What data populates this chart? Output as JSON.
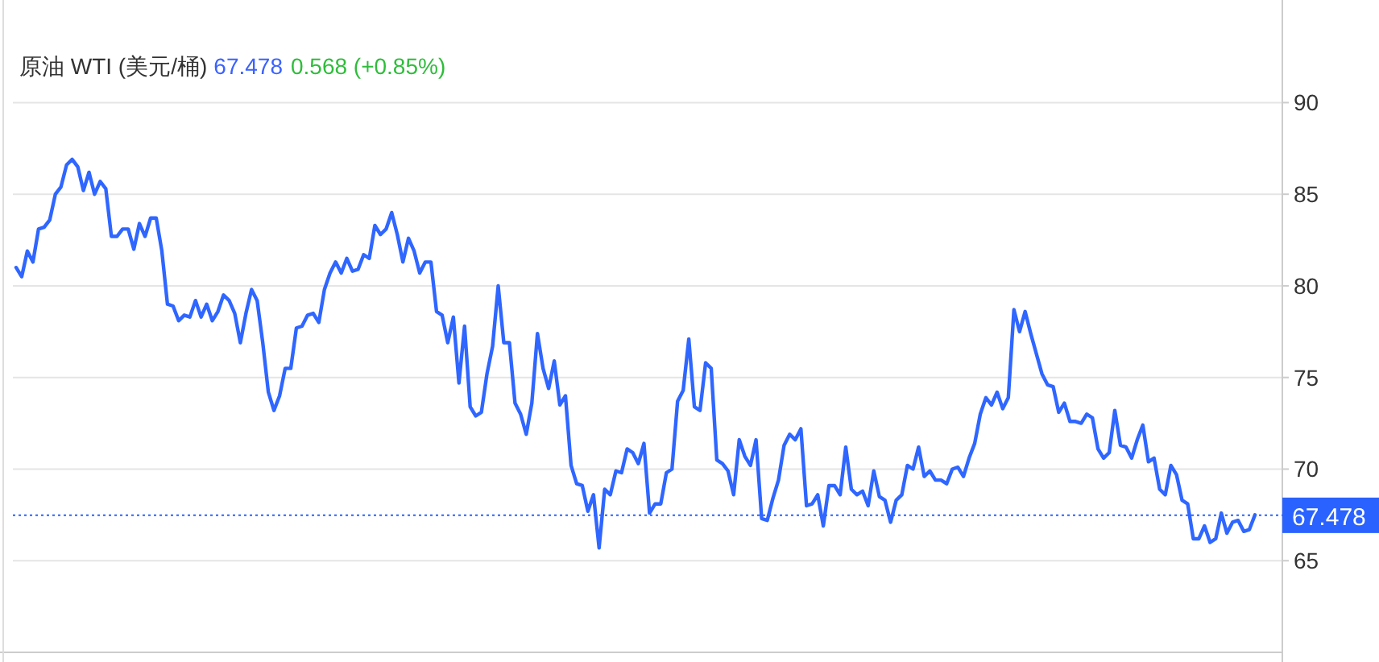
{
  "chart_data": {
    "type": "line",
    "title": "原油 WTI (美元/桶)",
    "annotations": [
      "67.478",
      "0.568 (+0.85%)"
    ],
    "categories": [
      null,
      null,
      null,
      null,
      null,
      null,
      null,
      null,
      null,
      null,
      null,
      null,
      null,
      null,
      null,
      null,
      null,
      null,
      null,
      null,
      null,
      null,
      null,
      null,
      null,
      null,
      null,
      null,
      null,
      null,
      null,
      null,
      null,
      null,
      null,
      null,
      null,
      null,
      null,
      null,
      null,
      null,
      null,
      null,
      null,
      null,
      null,
      null,
      null,
      null,
      null,
      null,
      null,
      null,
      null,
      null,
      null,
      null,
      null,
      null,
      null,
      null,
      null,
      null,
      null,
      null,
      null,
      null,
      null,
      null,
      null,
      null,
      null,
      null,
      null,
      null,
      null,
      null,
      null,
      null,
      null,
      null,
      null,
      null,
      null,
      null,
      null,
      null,
      null,
      null,
      null,
      null,
      null,
      null,
      null,
      null,
      null,
      null,
      null,
      null,
      null,
      null,
      null,
      null,
      null,
      null,
      null,
      null,
      null,
      null,
      null,
      null,
      null,
      null,
      null,
      null,
      null,
      null,
      null,
      null,
      null,
      null,
      null,
      null,
      null,
      null,
      null,
      null,
      null,
      null,
      null,
      null,
      null,
      null,
      null,
      null,
      null,
      null,
      null,
      null,
      null,
      null,
      null,
      null,
      null,
      null,
      null,
      null,
      null,
      null,
      null,
      null,
      null,
      null,
      null,
      null,
      null,
      null,
      null,
      null,
      null,
      null,
      null,
      null,
      null,
      null,
      null,
      null,
      null,
      null,
      null,
      null,
      null,
      null,
      null,
      null,
      null,
      null,
      null,
      null,
      null,
      null,
      null,
      null,
      null,
      null,
      null,
      null,
      null,
      null,
      null,
      null,
      null,
      null,
      null,
      null,
      null,
      null,
      null,
      null,
      null,
      null,
      null,
      null,
      null,
      null,
      null,
      null,
      null,
      null,
      null,
      null,
      null,
      null,
      null,
      null,
      null,
      null,
      null,
      null,
      null,
      null
    ],
    "values": [
      81.0,
      80.5,
      81.9,
      81.3,
      83.1,
      83.2,
      83.6,
      85.0,
      85.4,
      86.6,
      86.9,
      86.5,
      85.2,
      86.2,
      85.0,
      85.7,
      85.3,
      82.7,
      82.7,
      83.1,
      83.1,
      82.0,
      83.4,
      82.7,
      83.7,
      83.7,
      81.9,
      79.0,
      78.9,
      78.1,
      78.4,
      78.3,
      79.2,
      78.3,
      79.0,
      78.1,
      78.6,
      79.5,
      79.2,
      78.5,
      76.9,
      78.5,
      79.8,
      79.2,
      76.9,
      74.2,
      73.2,
      74.0,
      75.5,
      75.5,
      77.7,
      77.8,
      78.4,
      78.5,
      78.0,
      79.8,
      80.7,
      81.3,
      80.7,
      81.5,
      80.8,
      80.9,
      81.7,
      81.5,
      83.3,
      82.8,
      83.1,
      84.0,
      82.8,
      81.3,
      82.6,
      81.9,
      80.7,
      81.3,
      81.3,
      78.6,
      78.4,
      76.9,
      78.3,
      74.7,
      77.8,
      73.4,
      72.9,
      73.1,
      75.2,
      76.7,
      80.0,
      76.9,
      76.9,
      73.6,
      73.0,
      71.9,
      73.6,
      77.4,
      75.5,
      74.4,
      75.9,
      73.5,
      74.0,
      70.2,
      69.2,
      69.1,
      67.7,
      68.6,
      65.7,
      68.9,
      68.6,
      69.9,
      69.8,
      71.1,
      70.9,
      70.3,
      71.4,
      67.6,
      68.1,
      68.1,
      69.8,
      70.0,
      73.7,
      74.3,
      77.1,
      73.4,
      73.2,
      75.8,
      75.5,
      70.5,
      70.3,
      69.9,
      68.6,
      71.6,
      70.7,
      70.2,
      71.6,
      67.3,
      67.2,
      68.4,
      69.4,
      71.3,
      71.9,
      71.6,
      72.2,
      68.0,
      68.1,
      68.6,
      66.9,
      69.1,
      69.1,
      68.6,
      71.2,
      68.9,
      68.6,
      68.8,
      68.0,
      69.9,
      68.5,
      68.3,
      67.1,
      68.3,
      68.6,
      70.2,
      70.0,
      71.2,
      69.6,
      69.9,
      69.4,
      69.4,
      69.2,
      70.0,
      70.1,
      69.6,
      70.6,
      71.4,
      73.0,
      73.9,
      73.5,
      74.2,
      73.3,
      73.9,
      78.7,
      77.5,
      78.6,
      77.4,
      76.3,
      75.2,
      74.6,
      74.5,
      73.1,
      73.6,
      72.6,
      72.6,
      72.5,
      73.0,
      72.8,
      71.1,
      70.6,
      70.9,
      73.2,
      71.3,
      71.2,
      70.6,
      71.6,
      72.4,
      70.4,
      70.6,
      68.9,
      68.6,
      70.2,
      69.7,
      68.3,
      68.1,
      66.2,
      66.2,
      66.9,
      66.0,
      66.2,
      67.6,
      66.5,
      67.1,
      67.2,
      66.6,
      66.7,
      67.5
    ],
    "color": "#2f66ff",
    "ylim": [
      60,
      95.6
    ],
    "yticks": [
      65,
      70,
      75,
      80,
      85,
      90
    ],
    "ref_lines": [
      {
        "axis": "y",
        "value": 67.478,
        "label": "67.478",
        "color": "#2962ff",
        "line_style": "dotted"
      }
    ],
    "grid": "y",
    "tick_labels": "y",
    "marker": "none",
    "line_style": "solid"
  }
}
